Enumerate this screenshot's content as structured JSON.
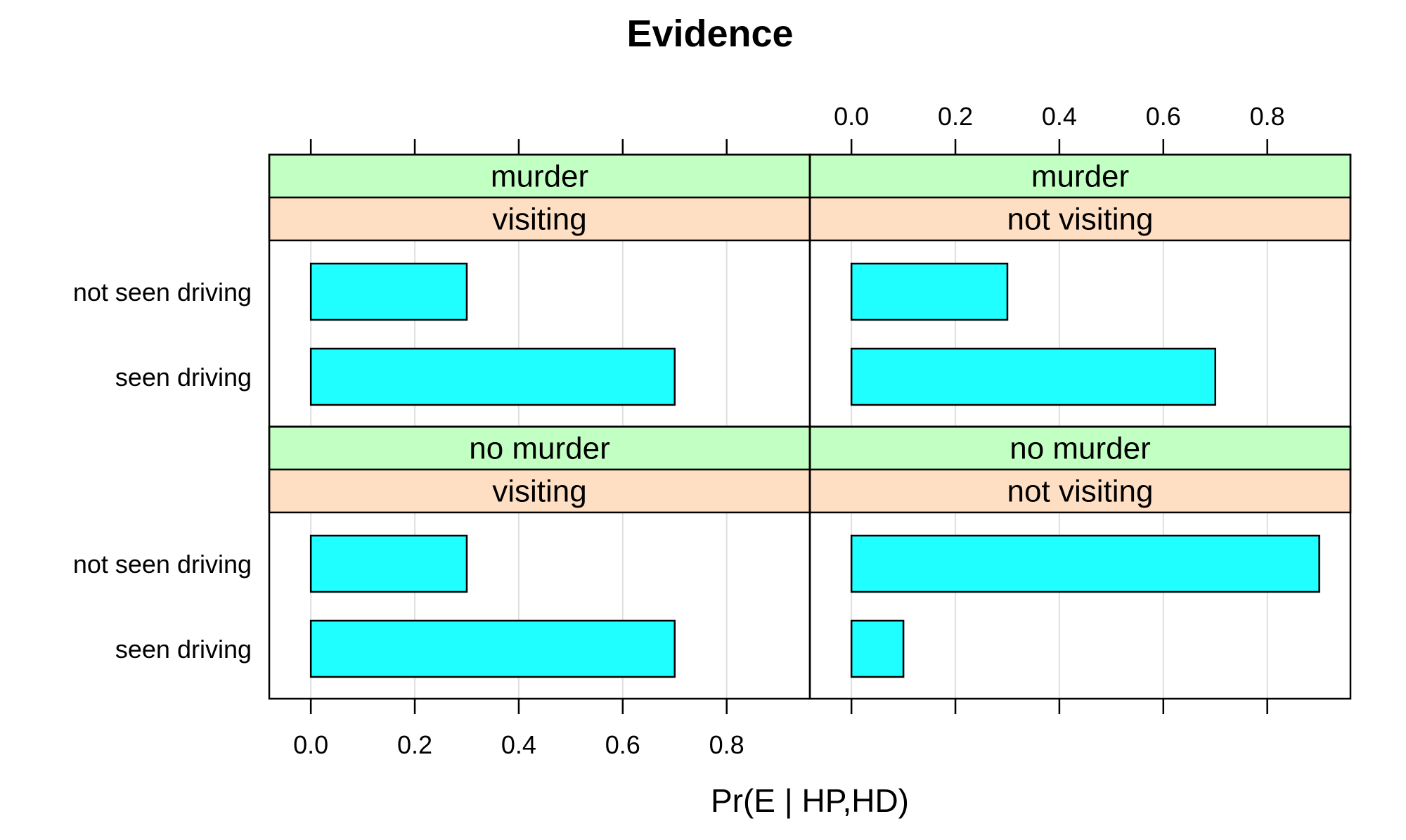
{
  "chart_data": {
    "type": "bar",
    "orientation": "horizontal",
    "title": "Evidence",
    "xlabel": "Pr(E | HP,HD)",
    "ylabel": "",
    "xlim": [
      -0.08,
      0.96
    ],
    "xticks": [
      "0.0",
      "0.2",
      "0.4",
      "0.6",
      "0.8"
    ],
    "xtick_values": [
      0.0,
      0.2,
      0.4,
      0.6,
      0.8
    ],
    "grid": true,
    "categories": [
      "not seen driving",
      "seen driving"
    ],
    "bar_color": "#20ffff",
    "strip_colors": {
      "outer": "#c2ffc2",
      "inner": "#ffdfc3"
    },
    "gridline_color": "#e0e0e0",
    "panels": [
      {
        "outer": "murder",
        "inner": "visiting",
        "values": [
          0.3,
          0.7
        ]
      },
      {
        "outer": "murder",
        "inner": "not visiting",
        "values": [
          0.3,
          0.7
        ]
      },
      {
        "outer": "no murder",
        "inner": "visiting",
        "values": [
          0.3,
          0.7
        ]
      },
      {
        "outer": "no murder",
        "inner": "not visiting",
        "values": [
          0.9,
          0.1
        ]
      }
    ]
  }
}
